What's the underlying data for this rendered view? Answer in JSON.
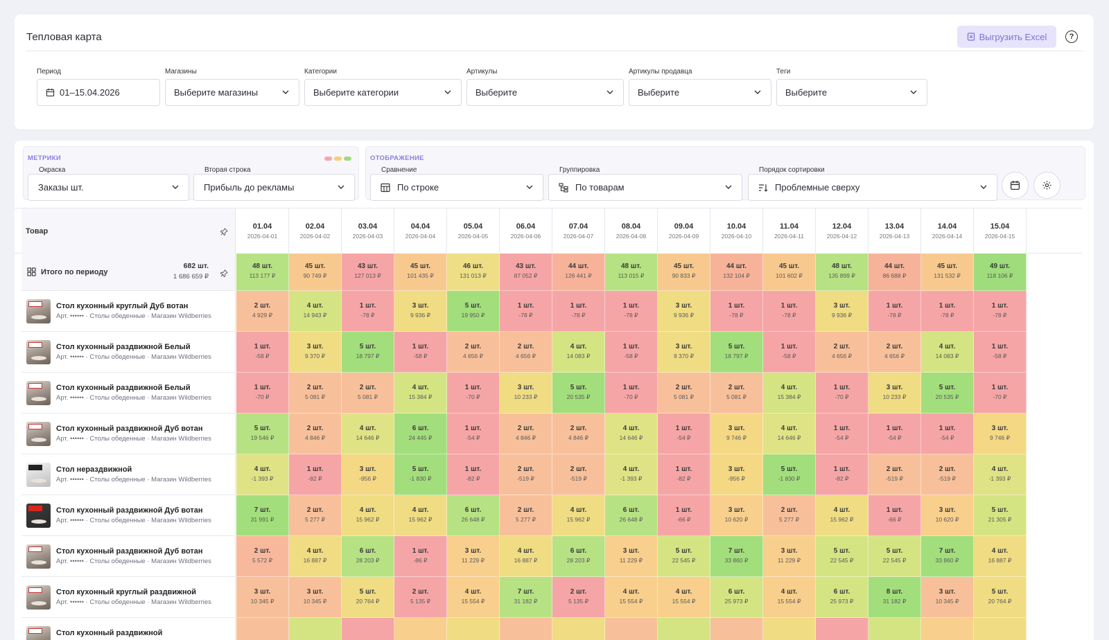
{
  "header": {
    "title": "Тепловая карта",
    "export_label": "Выгрузить Excel",
    "help": "?"
  },
  "filters": {
    "period": {
      "label": "Период",
      "value": "01–15.04.2026"
    },
    "stores": {
      "label": "Магазины",
      "value": "Выберите магазины"
    },
    "categories": {
      "label": "Категории",
      "value": "Выберите категории"
    },
    "articles": {
      "label": "Артикулы",
      "value": "Выберите"
    },
    "seller_articles": {
      "label": "Артикулы продавца",
      "value": "Выберите"
    },
    "tags": {
      "label": "Теги",
      "value": "Выберите"
    }
  },
  "metrics": {
    "title": "МЕТРИКИ",
    "coloring": {
      "label": "Окраска",
      "value": "Заказы шт."
    },
    "second_row": {
      "label": "Вторая строка",
      "value": "Прибыль до рекламы"
    },
    "dot_colors": [
      "#f4a8ae",
      "#f5cf79",
      "#9fdc7c"
    ]
  },
  "display": {
    "title": "ОТОБРАЖЕНИЕ",
    "comparison": {
      "label": "Сравнение",
      "value": "По строке"
    },
    "grouping": {
      "label": "Группировка",
      "value": "По товарам"
    },
    "sort": {
      "label": "Порядок сортировки",
      "value": "Проблемные сверху"
    }
  },
  "table": {
    "product_header": "Товар",
    "days": [
      {
        "d": "01.04",
        "f": "2026-04-01"
      },
      {
        "d": "02.04",
        "f": "2026-04-02"
      },
      {
        "d": "03.04",
        "f": "2026-04-03"
      },
      {
        "d": "04.04",
        "f": "2026-04-04"
      },
      {
        "d": "05.04",
        "f": "2026-04-05"
      },
      {
        "d": "06.04",
        "f": "2026-04-06"
      },
      {
        "d": "07.04",
        "f": "2026-04-07"
      },
      {
        "d": "08.04",
        "f": "2026-04-08"
      },
      {
        "d": "09.04",
        "f": "2026-04-09"
      },
      {
        "d": "10.04",
        "f": "2026-04-10"
      },
      {
        "d": "11.04",
        "f": "2026-04-11"
      },
      {
        "d": "12.04",
        "f": "2026-04-12"
      },
      {
        "d": "13.04",
        "f": "2026-04-13"
      },
      {
        "d": "14.04",
        "f": "2026-04-14"
      },
      {
        "d": "15.04",
        "f": "2026-04-15"
      }
    ],
    "total": {
      "name": "Итого по периоду",
      "qty": "682 шт.",
      "sum": "1 686 659 ₽",
      "cells": [
        {
          "q": "48 шт.",
          "s": "113 177 ₽",
          "c": "#b6e283"
        },
        {
          "q": "45 шт.",
          "s": "90 749 ₽",
          "c": "#f8c98f"
        },
        {
          "q": "43 шт.",
          "s": "127 013 ₽",
          "c": "#f6a5a6"
        },
        {
          "q": "45 шт.",
          "s": "101 435 ₽",
          "c": "#f8c98f"
        },
        {
          "q": "46 шт.",
          "s": "131 013 ₽",
          "c": "#eede85"
        },
        {
          "q": "43 шт.",
          "s": "87 052 ₽",
          "c": "#f6a5a6"
        },
        {
          "q": "44 шт.",
          "s": "126 441 ₽",
          "c": "#f7b39a"
        },
        {
          "q": "48 шт.",
          "s": "113 015 ₽",
          "c": "#b6e283"
        },
        {
          "q": "45 шт.",
          "s": "90 833 ₽",
          "c": "#f8c98f"
        },
        {
          "q": "44 шт.",
          "s": "132 104 ₽",
          "c": "#f7b39a"
        },
        {
          "q": "45 шт.",
          "s": "101 602 ₽",
          "c": "#f8c98f"
        },
        {
          "q": "48 шт.",
          "s": "135 899 ₽",
          "c": "#b6e283"
        },
        {
          "q": "44 шт.",
          "s": "86 688 ₽",
          "c": "#f7b39a"
        },
        {
          "q": "45 шт.",
          "s": "131 532 ₽",
          "c": "#f8c98f"
        },
        {
          "q": "49 шт.",
          "s": "118 106 ₽",
          "c": "#9fdc7c"
        }
      ]
    },
    "rows": [
      {
        "name": "Стол кухонный круглый Дуб вотан",
        "sub": "Арт. •••••• · Столы обеденные · Магазин Wildberries",
        "thumb": "",
        "cells": [
          {
            "q": "2 шт.",
            "s": "4 929 ₽",
            "c": "#f8c09a"
          },
          {
            "q": "4 шт.",
            "s": "14 943 ₽",
            "c": "#d5e482"
          },
          {
            "q": "1 шт.",
            "s": "-78 ₽",
            "c": "#f6a5a6"
          },
          {
            "q": "3 шт.",
            "s": "9 936 ₽",
            "c": "#f0dc82"
          },
          {
            "q": "5 шт.",
            "s": "19 950 ₽",
            "c": "#a3de7c"
          },
          {
            "q": "1 шт.",
            "s": "-78 ₽",
            "c": "#f6a5a6"
          },
          {
            "q": "1 шт.",
            "s": "-78 ₽",
            "c": "#f6a5a6"
          },
          {
            "q": "1 шт.",
            "s": "-78 ₽",
            "c": "#f6a5a6"
          },
          {
            "q": "3 шт.",
            "s": "9 936 ₽",
            "c": "#f0dc82"
          },
          {
            "q": "1 шт.",
            "s": "-78 ₽",
            "c": "#f6a5a6"
          },
          {
            "q": "1 шт.",
            "s": "-78 ₽",
            "c": "#f6a5a6"
          },
          {
            "q": "3 шт.",
            "s": "9 936 ₽",
            "c": "#f0dc82"
          },
          {
            "q": "1 шт.",
            "s": "-78 ₽",
            "c": "#f6a5a6"
          },
          {
            "q": "1 шт.",
            "s": "-78 ₽",
            "c": "#f6a5a6"
          },
          {
            "q": "1 шт.",
            "s": "-78 ₽",
            "c": "#f6a5a6"
          }
        ]
      },
      {
        "name": "Стол кухонный раздвижной Белый",
        "sub": "Арт. •••••• · Столы обеденные · Магазин Wildberries",
        "thumb": "",
        "cells": [
          {
            "q": "1 шт.",
            "s": "-58 ₽",
            "c": "#f6a5a6"
          },
          {
            "q": "3 шт.",
            "s": "9 370 ₽",
            "c": "#f0dc82"
          },
          {
            "q": "5 шт.",
            "s": "18 797 ₽",
            "c": "#a3de7c"
          },
          {
            "q": "1 шт.",
            "s": "-58 ₽",
            "c": "#f6a5a6"
          },
          {
            "q": "2 шт.",
            "s": "4 656 ₽",
            "c": "#f8c09a"
          },
          {
            "q": "2 шт.",
            "s": "4 656 ₽",
            "c": "#f8c09a"
          },
          {
            "q": "4 шт.",
            "s": "14 083 ₽",
            "c": "#d5e482"
          },
          {
            "q": "1 шт.",
            "s": "-58 ₽",
            "c": "#f6a5a6"
          },
          {
            "q": "3 шт.",
            "s": "9 370 ₽",
            "c": "#f0dc82"
          },
          {
            "q": "5 шт.",
            "s": "18 797 ₽",
            "c": "#a3de7c"
          },
          {
            "q": "1 шт.",
            "s": "-58 ₽",
            "c": "#f6a5a6"
          },
          {
            "q": "2 шт.",
            "s": "4 656 ₽",
            "c": "#f8c09a"
          },
          {
            "q": "2 шт.",
            "s": "4 656 ₽",
            "c": "#f8c09a"
          },
          {
            "q": "4 шт.",
            "s": "14 083 ₽",
            "c": "#d5e482"
          },
          {
            "q": "1 шт.",
            "s": "-58 ₽",
            "c": "#f6a5a6"
          }
        ]
      },
      {
        "name": "Стол кухонный раздвижной Белый",
        "sub": "Арт. •••••• · Столы обеденные · Магазин Wildberries",
        "thumb": "",
        "cells": [
          {
            "q": "1 шт.",
            "s": "-70 ₽",
            "c": "#f6a5a6"
          },
          {
            "q": "2 шт.",
            "s": "5 081 ₽",
            "c": "#f8c09a"
          },
          {
            "q": "2 шт.",
            "s": "5 081 ₽",
            "c": "#f8c09a"
          },
          {
            "q": "4 шт.",
            "s": "15 384 ₽",
            "c": "#d5e482"
          },
          {
            "q": "1 шт.",
            "s": "-70 ₽",
            "c": "#f6a5a6"
          },
          {
            "q": "3 шт.",
            "s": "10 233 ₽",
            "c": "#f0dc82"
          },
          {
            "q": "5 шт.",
            "s": "20 535 ₽",
            "c": "#a3de7c"
          },
          {
            "q": "1 шт.",
            "s": "-70 ₽",
            "c": "#f6a5a6"
          },
          {
            "q": "2 шт.",
            "s": "5 081 ₽",
            "c": "#f8c09a"
          },
          {
            "q": "2 шт.",
            "s": "5 081 ₽",
            "c": "#f8c09a"
          },
          {
            "q": "4 шт.",
            "s": "15 384 ₽",
            "c": "#d5e482"
          },
          {
            "q": "1 шт.",
            "s": "-70 ₽",
            "c": "#f6a5a6"
          },
          {
            "q": "3 шт.",
            "s": "10 233 ₽",
            "c": "#f0dc82"
          },
          {
            "q": "5 шт.",
            "s": "20 535 ₽",
            "c": "#a3de7c"
          },
          {
            "q": "1 шт.",
            "s": "-70 ₽",
            "c": "#f6a5a6"
          }
        ]
      },
      {
        "name": "Стол кухонный раздвижной Дуб вотан",
        "sub": "Арт. •••••• · Столы обеденные · Магазин Wildberries",
        "thumb": "",
        "cells": [
          {
            "q": "5 шт.",
            "s": "19 546 ₽",
            "c": "#b6e283"
          },
          {
            "q": "2 шт.",
            "s": "4 846 ₽",
            "c": "#f8c09a"
          },
          {
            "q": "4 шт.",
            "s": "14 646 ₽",
            "c": "#e0e385"
          },
          {
            "q": "6 шт.",
            "s": "24 445 ₽",
            "c": "#a3de7c"
          },
          {
            "q": "1 шт.",
            "s": "-54 ₽",
            "c": "#f6a5a6"
          },
          {
            "q": "2 шт.",
            "s": "4 846 ₽",
            "c": "#f8c09a"
          },
          {
            "q": "2 шт.",
            "s": "4 846 ₽",
            "c": "#f8c09a"
          },
          {
            "q": "4 шт.",
            "s": "14 646 ₽",
            "c": "#e0e385"
          },
          {
            "q": "1 шт.",
            "s": "-54 ₽",
            "c": "#f6a5a6"
          },
          {
            "q": "3 шт.",
            "s": "9 746 ₽",
            "c": "#f5d884"
          },
          {
            "q": "4 шт.",
            "s": "14 646 ₽",
            "c": "#e0e385"
          },
          {
            "q": "1 шт.",
            "s": "-54 ₽",
            "c": "#f6a5a6"
          },
          {
            "q": "1 шт.",
            "s": "-54 ₽",
            "c": "#f6a5a6"
          },
          {
            "q": "1 шт.",
            "s": "-54 ₽",
            "c": "#f6a5a6"
          },
          {
            "q": "3 шт.",
            "s": "9 746 ₽",
            "c": "#f5d884"
          }
        ]
      },
      {
        "name": "Стол нераздвижной",
        "sub": "Арт. •••••• · Столы обеденные · Магазин Wildberries",
        "thumb": "mono",
        "cells": [
          {
            "q": "4 шт.",
            "s": "-1 393 ₽",
            "c": "#e0e385"
          },
          {
            "q": "1 шт.",
            "s": "-82 ₽",
            "c": "#f6a5a6"
          },
          {
            "q": "3 шт.",
            "s": "-956 ₽",
            "c": "#f5d884"
          },
          {
            "q": "5 шт.",
            "s": "-1 830 ₽",
            "c": "#a3de7c"
          },
          {
            "q": "1 шт.",
            "s": "-82 ₽",
            "c": "#f6a5a6"
          },
          {
            "q": "2 шт.",
            "s": "-519 ₽",
            "c": "#f8c09a"
          },
          {
            "q": "2 шт.",
            "s": "-519 ₽",
            "c": "#f8c09a"
          },
          {
            "q": "4 шт.",
            "s": "-1 393 ₽",
            "c": "#e0e385"
          },
          {
            "q": "1 шт.",
            "s": "-82 ₽",
            "c": "#f6a5a6"
          },
          {
            "q": "3 шт.",
            "s": "-956 ₽",
            "c": "#f5d884"
          },
          {
            "q": "5 шт.",
            "s": "-1 830 ₽",
            "c": "#a3de7c"
          },
          {
            "q": "1 шт.",
            "s": "-82 ₽",
            "c": "#f6a5a6"
          },
          {
            "q": "2 шт.",
            "s": "-519 ₽",
            "c": "#f8c09a"
          },
          {
            "q": "2 шт.",
            "s": "-519 ₽",
            "c": "#f8c09a"
          },
          {
            "q": "4 шт.",
            "s": "-1 393 ₽",
            "c": "#e0e385"
          }
        ]
      },
      {
        "name": "Стол кухонный раздвижной Дуб вотан",
        "sub": "Арт. •••••• · Столы обеденные · Магазин Wildberries",
        "thumb": "dark",
        "cells": [
          {
            "q": "7 шт.",
            "s": "31 991 ₽",
            "c": "#a3de7c"
          },
          {
            "q": "2 шт.",
            "s": "5 277 ₽",
            "c": "#f8c09a"
          },
          {
            "q": "4 шт.",
            "s": "15 962 ₽",
            "c": "#f0dc82"
          },
          {
            "q": "4 шт.",
            "s": "15 962 ₽",
            "c": "#f0dc82"
          },
          {
            "q": "6 шт.",
            "s": "26 648 ₽",
            "c": "#b6e283"
          },
          {
            "q": "2 шт.",
            "s": "5 277 ₽",
            "c": "#f8c09a"
          },
          {
            "q": "4 шт.",
            "s": "15 962 ₽",
            "c": "#f0dc82"
          },
          {
            "q": "6 шт.",
            "s": "26 648 ₽",
            "c": "#b6e283"
          },
          {
            "q": "1 шт.",
            "s": "-66 ₽",
            "c": "#f6a5a6"
          },
          {
            "q": "3 шт.",
            "s": "10 620 ₽",
            "c": "#f8cf8c"
          },
          {
            "q": "2 шт.",
            "s": "5 277 ₽",
            "c": "#f8c09a"
          },
          {
            "q": "4 шт.",
            "s": "15 962 ₽",
            "c": "#f0dc82"
          },
          {
            "q": "1 шт.",
            "s": "-66 ₽",
            "c": "#f6a5a6"
          },
          {
            "q": "3 шт.",
            "s": "10 620 ₽",
            "c": "#f8cf8c"
          },
          {
            "q": "5 шт.",
            "s": "21 305 ₽",
            "c": "#d5e482"
          }
        ]
      },
      {
        "name": "Стол кухонный раздвижной Дуб вотан",
        "sub": "Арт. •••••• · Столы обеденные · Магазин Wildberries",
        "thumb": "",
        "cells": [
          {
            "q": "2 шт.",
            "s": "5 572 ₽",
            "c": "#f8b89c"
          },
          {
            "q": "4 шт.",
            "s": "16 887 ₽",
            "c": "#f0dc82"
          },
          {
            "q": "6 шт.",
            "s": "28 203 ₽",
            "c": "#b6e283"
          },
          {
            "q": "1 шт.",
            "s": "-86 ₽",
            "c": "#f6a5a6"
          },
          {
            "q": "3 шт.",
            "s": "11 229 ₽",
            "c": "#f8cf8c"
          },
          {
            "q": "4 шт.",
            "s": "16 887 ₽",
            "c": "#f0dc82"
          },
          {
            "q": "6 шт.",
            "s": "28 203 ₽",
            "c": "#b6e283"
          },
          {
            "q": "3 шт.",
            "s": "11 229 ₽",
            "c": "#f8cf8c"
          },
          {
            "q": "5 шт.",
            "s": "22 545 ₽",
            "c": "#d5e482"
          },
          {
            "q": "7 шт.",
            "s": "33 860 ₽",
            "c": "#a3de7c"
          },
          {
            "q": "3 шт.",
            "s": "11 229 ₽",
            "c": "#f8cf8c"
          },
          {
            "q": "5 шт.",
            "s": "22 545 ₽",
            "c": "#d5e482"
          },
          {
            "q": "5 шт.",
            "s": "22 545 ₽",
            "c": "#d5e482"
          },
          {
            "q": "7 шт.",
            "s": "33 860 ₽",
            "c": "#a3de7c"
          },
          {
            "q": "4 шт.",
            "s": "16 887 ₽",
            "c": "#f0dc82"
          }
        ]
      },
      {
        "name": "Стол кухонный круглый раздвижной",
        "sub": "Арт. •••••• · Столы обеденные · Магазин Wildberries",
        "thumb": "",
        "cells": [
          {
            "q": "3 шт.",
            "s": "10 345 ₽",
            "c": "#f8c09a"
          },
          {
            "q": "3 шт.",
            "s": "10 345 ₽",
            "c": "#f8c09a"
          },
          {
            "q": "5 шт.",
            "s": "20 764 ₽",
            "c": "#f0dc82"
          },
          {
            "q": "2 шт.",
            "s": "5 135 ₽",
            "c": "#f6a5a6"
          },
          {
            "q": "4 шт.",
            "s": "15 554 ₽",
            "c": "#f8cf8c"
          },
          {
            "q": "7 шт.",
            "s": "31 182 ₽",
            "c": "#b6e283"
          },
          {
            "q": "2 шт.",
            "s": "5 135 ₽",
            "c": "#f6a5a6"
          },
          {
            "q": "4 шт.",
            "s": "15 554 ₽",
            "c": "#f8cf8c"
          },
          {
            "q": "4 шт.",
            "s": "15 554 ₽",
            "c": "#f8cf8c"
          },
          {
            "q": "6 шт.",
            "s": "25 973 ₽",
            "c": "#d5e482"
          },
          {
            "q": "4 шт.",
            "s": "15 554 ₽",
            "c": "#f8cf8c"
          },
          {
            "q": "6 шт.",
            "s": "25 973 ₽",
            "c": "#d5e482"
          },
          {
            "q": "8 шт.",
            "s": "31 182 ₽",
            "c": "#a3de7c"
          },
          {
            "q": "3 шт.",
            "s": "10 345 ₽",
            "c": "#f8c09a"
          },
          {
            "q": "5 шт.",
            "s": "20 764 ₽",
            "c": "#f0dc82"
          }
        ]
      },
      {
        "name": "Стол кухонный раздвижной",
        "sub": "",
        "thumb": "",
        "cells": [
          {
            "q": "",
            "s": "",
            "c": "#f8c09a"
          },
          {
            "q": "",
            "s": "",
            "c": "#d5e482"
          },
          {
            "q": "",
            "s": "",
            "c": "#f6a5a6"
          },
          {
            "q": "",
            "s": "",
            "c": "#f8cf8c"
          },
          {
            "q": "",
            "s": "",
            "c": "#f0dc82"
          },
          {
            "q": "",
            "s": "",
            "c": "#f8c09a"
          },
          {
            "q": "",
            "s": "",
            "c": "#f0dc82"
          },
          {
            "q": "",
            "s": "",
            "c": "#f8c09a"
          },
          {
            "q": "",
            "s": "",
            "c": "#d5e482"
          },
          {
            "q": "",
            "s": "",
            "c": "#f8c09a"
          },
          {
            "q": "",
            "s": "",
            "c": "#f0dc82"
          },
          {
            "q": "",
            "s": "",
            "c": "#f6a5a6"
          },
          {
            "q": "",
            "s": "",
            "c": "#d5e482"
          },
          {
            "q": "",
            "s": "",
            "c": "#f8cf8c"
          },
          {
            "q": "",
            "s": "",
            "c": "#f0dc82"
          }
        ]
      }
    ]
  }
}
